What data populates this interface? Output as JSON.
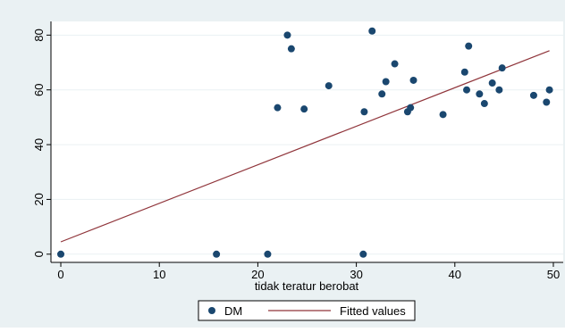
{
  "chart_data": {
    "type": "scatter",
    "title": "",
    "xlabel": "tidak teratur berobat",
    "ylabel": "",
    "xlim": [
      -1,
      51
    ],
    "ylim": [
      -3,
      85
    ],
    "xticks": [
      0,
      10,
      20,
      30,
      40,
      50
    ],
    "yticks": [
      0,
      20,
      40,
      60,
      80
    ],
    "grid": true,
    "legend_position": "bottom",
    "series": [
      {
        "name": "DM",
        "kind": "scatter",
        "color": "#1a476f",
        "points": [
          {
            "x": 0.0,
            "y": 0
          },
          {
            "x": 15.8,
            "y": 0
          },
          {
            "x": 21.0,
            "y": 0
          },
          {
            "x": 30.7,
            "y": 0
          },
          {
            "x": 22.0,
            "y": 53.5
          },
          {
            "x": 23.0,
            "y": 80
          },
          {
            "x": 23.4,
            "y": 75
          },
          {
            "x": 24.7,
            "y": 53
          },
          {
            "x": 27.2,
            "y": 61.5
          },
          {
            "x": 30.8,
            "y": 52
          },
          {
            "x": 31.6,
            "y": 81.5
          },
          {
            "x": 32.6,
            "y": 58.5
          },
          {
            "x": 33.0,
            "y": 63
          },
          {
            "x": 33.9,
            "y": 69.5
          },
          {
            "x": 35.2,
            "y": 52
          },
          {
            "x": 35.5,
            "y": 53.5
          },
          {
            "x": 35.8,
            "y": 63.5
          },
          {
            "x": 38.8,
            "y": 51
          },
          {
            "x": 41.0,
            "y": 66.5
          },
          {
            "x": 41.2,
            "y": 60
          },
          {
            "x": 41.4,
            "y": 76
          },
          {
            "x": 42.5,
            "y": 58.5
          },
          {
            "x": 43.0,
            "y": 55
          },
          {
            "x": 43.8,
            "y": 62.5
          },
          {
            "x": 44.5,
            "y": 60
          },
          {
            "x": 44.8,
            "y": 68
          },
          {
            "x": 48.0,
            "y": 58
          },
          {
            "x": 49.3,
            "y": 55.5
          },
          {
            "x": 49.6,
            "y": 60
          }
        ]
      },
      {
        "name": "Fitted values",
        "kind": "line",
        "color": "#90353b",
        "points": [
          {
            "x": 0.0,
            "y": 4.5
          },
          {
            "x": 49.6,
            "y": 74.3
          }
        ]
      }
    ]
  }
}
